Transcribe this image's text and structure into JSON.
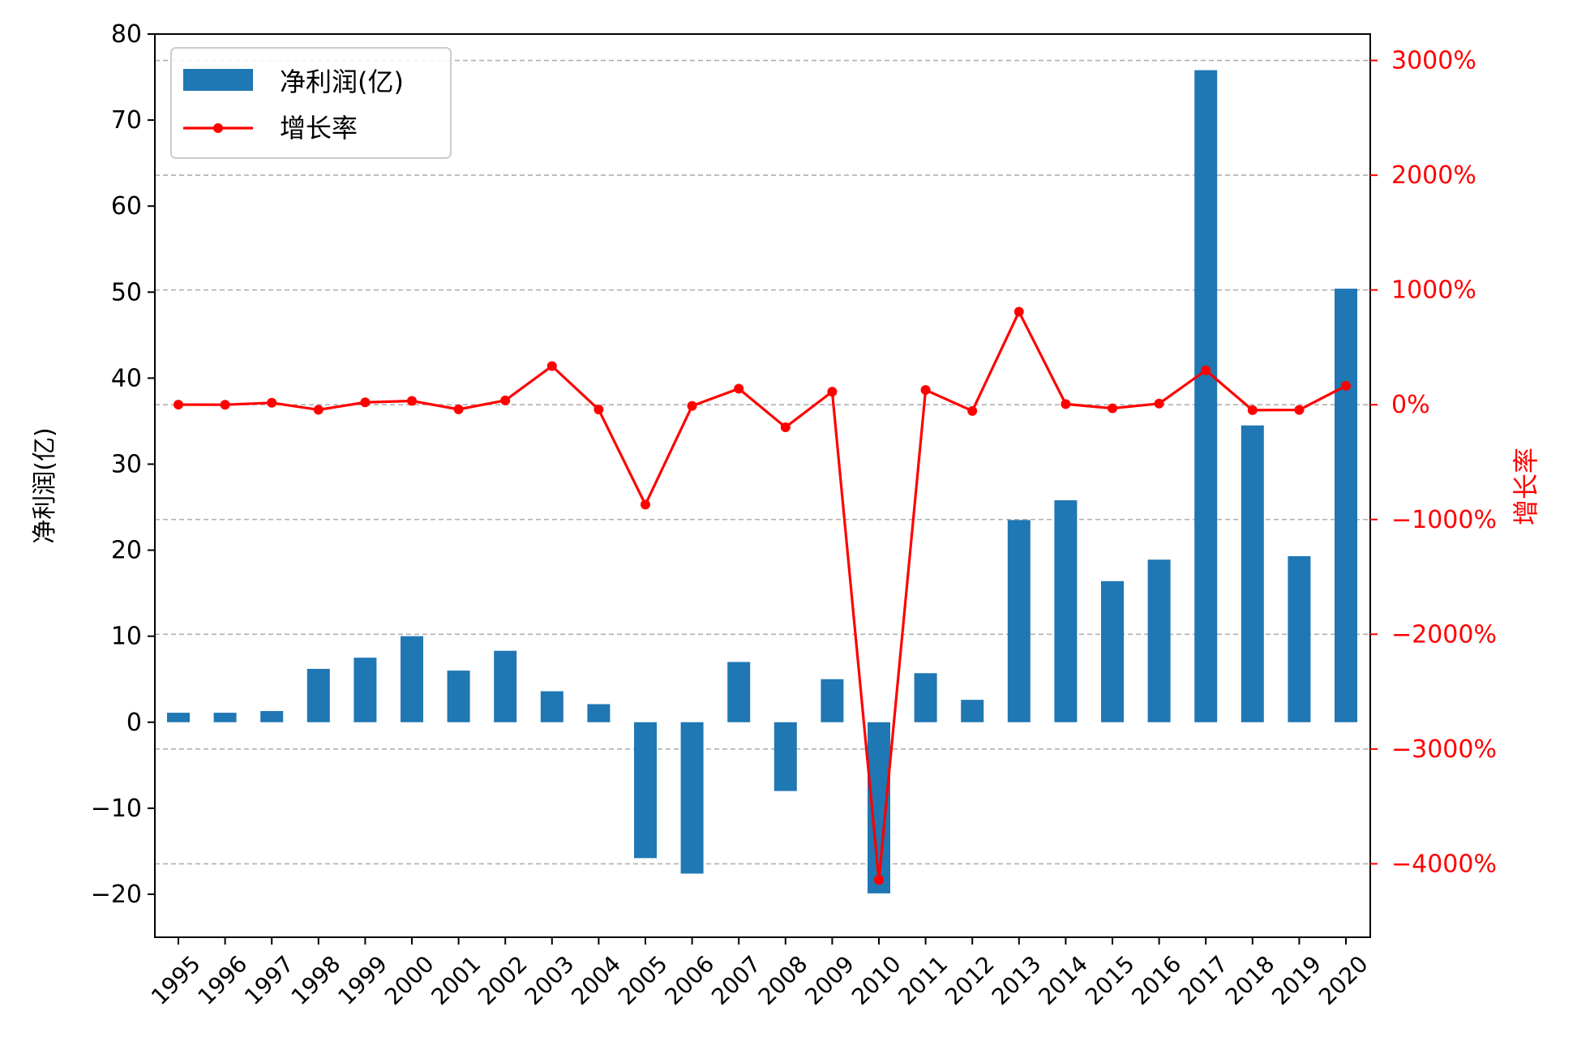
{
  "chart_data": {
    "type": "bar",
    "categories": [
      "1995",
      "1996",
      "1997",
      "1998",
      "1999",
      "2000",
      "2001",
      "2002",
      "2003",
      "2004",
      "2005",
      "2006",
      "2007",
      "2008",
      "2009",
      "2010",
      "2011",
      "2012",
      "2013",
      "2014",
      "2015",
      "2016",
      "2017",
      "2018",
      "2019",
      "2020"
    ],
    "series": [
      {
        "name": "净利润(亿)",
        "type": "bar",
        "axis": "left",
        "color": "#1f77b4",
        "values": [
          1.1,
          1.1,
          1.3,
          6.2,
          7.5,
          10.0,
          6.0,
          8.3,
          3.6,
          2.1,
          -15.8,
          -17.6,
          7.0,
          -8.0,
          5.0,
          -19.9,
          5.7,
          2.6,
          23.5,
          25.8,
          16.4,
          18.9,
          75.8,
          34.5,
          19.3,
          50.4
        ]
      },
      {
        "name": "增长率",
        "type": "line",
        "axis": "right",
        "color": "#ff0000",
        "values": [
          1,
          0,
          17,
          -44,
          21,
          33,
          -40,
          38,
          337,
          -42,
          -870,
          -10,
          140,
          -196,
          114,
          -4140,
          129,
          -54,
          810,
          6,
          -31,
          10,
          300,
          -47,
          -45,
          165
        ]
      }
    ],
    "ylabel": "净利润(亿)",
    "y2label": "增长率",
    "ylim": [
      -25,
      80
    ],
    "yticks": [
      -20,
      -10,
      0,
      10,
      20,
      30,
      40,
      50,
      60,
      70,
      80
    ],
    "y2lim": [
      -4640,
      3230
    ],
    "y2ticks": [
      -4000,
      -3000,
      -2000,
      -1000,
      0,
      1000,
      2000,
      3000
    ],
    "y2tick_suffix": "%",
    "grid": "horizontal dashed (right axis)",
    "legend": "top-left"
  }
}
